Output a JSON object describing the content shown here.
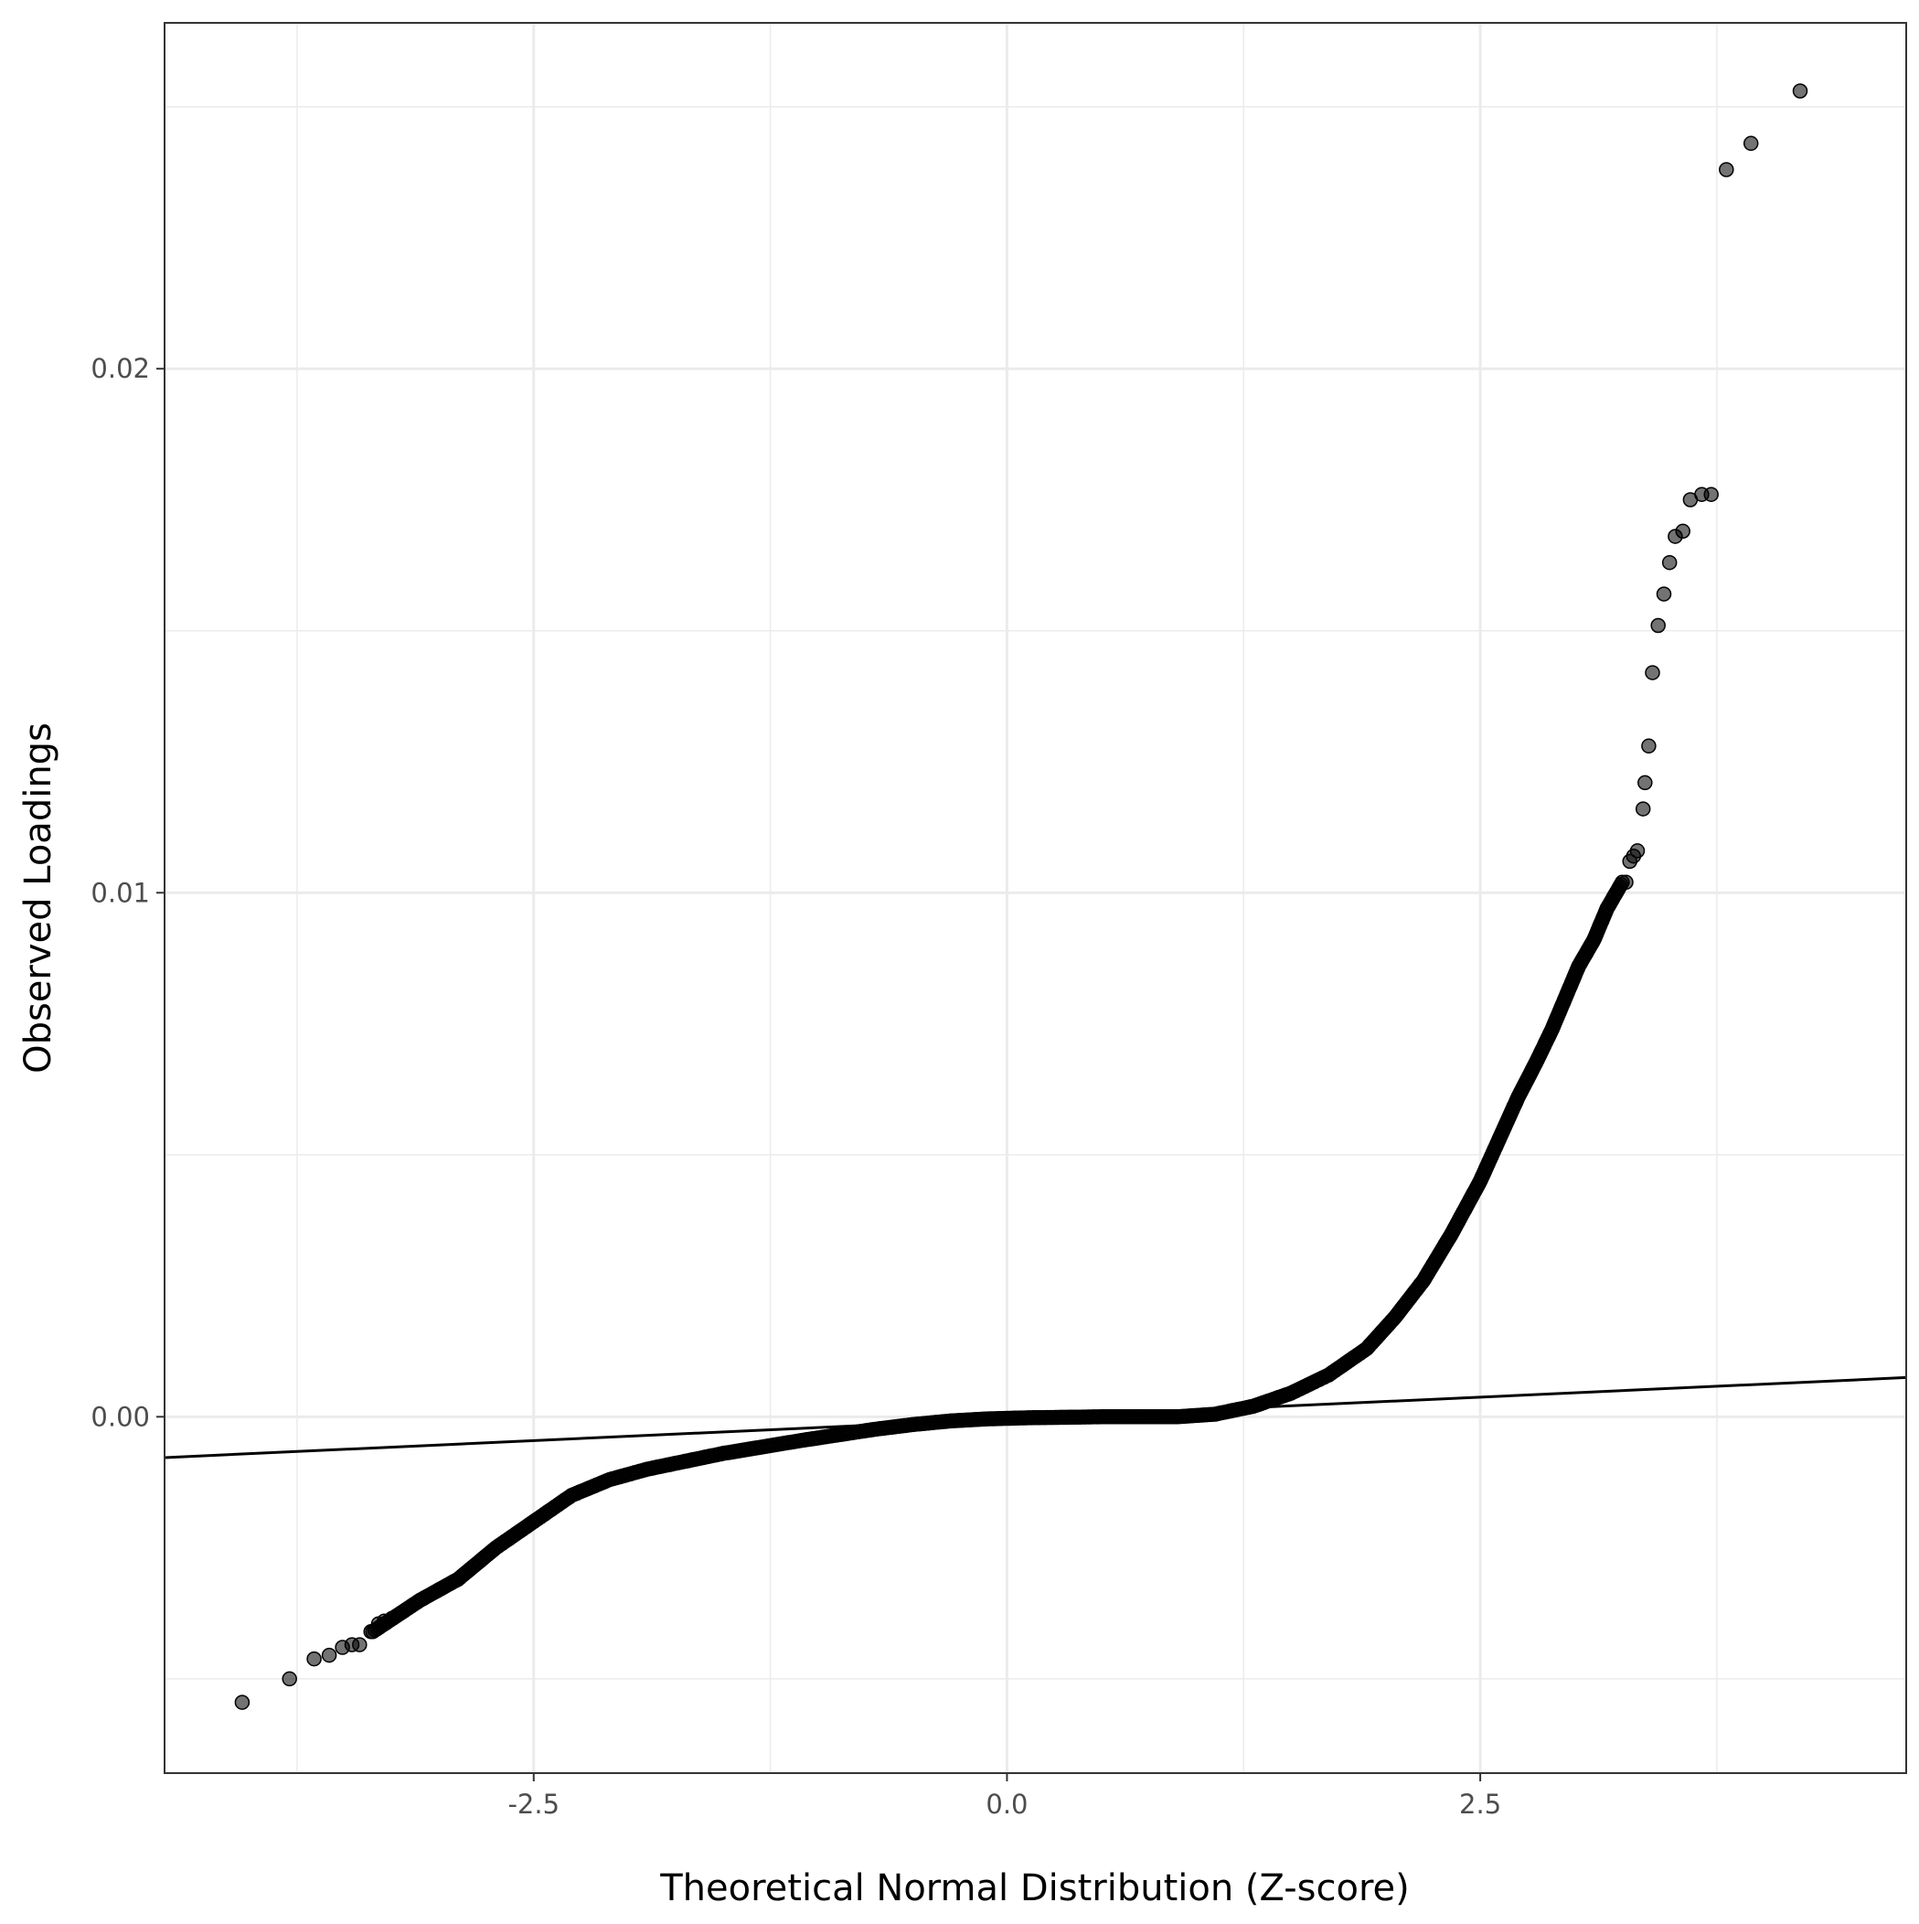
{
  "chart_data": {
    "type": "scatter",
    "title": "",
    "xlabel": "Theoretical Normal Distribution (Z-score)",
    "ylabel": "Observed Loadings",
    "xlim": [
      -4.45,
      4.75
    ],
    "ylim": [
      -0.0068,
      0.0266
    ],
    "x_ticks": [
      {
        "value": -2.5,
        "label": "-2.5"
      },
      {
        "value": 0.0,
        "label": "0.0"
      },
      {
        "value": 2.5,
        "label": "2.5"
      }
    ],
    "y_ticks": [
      {
        "value": 0.0,
        "label": "0.00"
      },
      {
        "value": 0.01,
        "label": "0.01"
      },
      {
        "value": 0.02,
        "label": "0.02"
      }
    ],
    "x_minor": [
      -3.75,
      -1.25,
      1.25,
      3.75
    ],
    "y_minor": [
      -0.005,
      0.005,
      0.015,
      0.025
    ],
    "grid": true,
    "legend": "none",
    "reference_line": {
      "slope": 0.000166,
      "intercept": -4e-05
    },
    "series": [
      {
        "kind": "points",
        "curve": [
          [
            -3.35,
            -0.0041
          ],
          [
            -3.1,
            -0.0035
          ],
          [
            -2.9,
            -0.0031
          ],
          [
            -2.7,
            -0.0025
          ],
          [
            -2.5,
            -0.002
          ],
          [
            -2.3,
            -0.0015
          ],
          [
            -2.1,
            -0.0012
          ],
          [
            -1.9,
            -0.001
          ],
          [
            -1.7,
            -0.00085
          ],
          [
            -1.5,
            -0.0007
          ],
          [
            -1.3,
            -0.00058
          ],
          [
            -1.1,
            -0.00046
          ],
          [
            -0.9,
            -0.00035
          ],
          [
            -0.7,
            -0.00024
          ],
          [
            -0.5,
            -0.00015
          ],
          [
            -0.3,
            -8e-05
          ],
          [
            -0.1,
            -4e-05
          ],
          [
            0.1,
            -2e-05
          ],
          [
            0.3,
            -1e-05
          ],
          [
            0.5,
            0.0
          ],
          [
            0.7,
            0.0
          ],
          [
            0.9,
            0.0
          ],
          [
            1.1,
            5e-05
          ],
          [
            1.3,
            0.0002
          ],
          [
            1.5,
            0.00045
          ],
          [
            1.7,
            0.0008
          ],
          [
            1.9,
            0.0013
          ],
          [
            2.05,
            0.0019
          ],
          [
            2.2,
            0.0026
          ],
          [
            2.35,
            0.0035
          ],
          [
            2.5,
            0.0045
          ],
          [
            2.6,
            0.0053
          ],
          [
            2.7,
            0.0061
          ],
          [
            2.8,
            0.0068
          ],
          [
            2.88,
            0.0074
          ],
          [
            2.95,
            0.008
          ],
          [
            3.02,
            0.0086
          ],
          [
            3.1,
            0.0091
          ],
          [
            3.17,
            0.0097
          ],
          [
            3.25,
            0.0102
          ]
        ],
        "points": [
          [
            -4.04,
            -0.00545
          ],
          [
            -3.79,
            -0.005
          ],
          [
            -3.66,
            -0.00462
          ],
          [
            -3.58,
            -0.00455
          ],
          [
            -3.51,
            -0.0044
          ],
          [
            -3.46,
            -0.00435
          ],
          [
            -3.42,
            -0.00435
          ],
          [
            -3.36,
            -0.0041
          ],
          [
            -3.32,
            -0.00395
          ],
          [
            -3.29,
            -0.0039
          ],
          [
            -3.25,
            -0.00385
          ],
          [
            3.27,
            0.0102
          ],
          [
            3.29,
            0.0106
          ],
          [
            3.31,
            0.0107
          ],
          [
            3.33,
            0.0108
          ],
          [
            3.36,
            0.0116
          ],
          [
            3.37,
            0.0121
          ],
          [
            3.39,
            0.0128
          ],
          [
            3.41,
            0.0142
          ],
          [
            3.44,
            0.0151
          ],
          [
            3.47,
            0.0157
          ],
          [
            3.5,
            0.0163
          ],
          [
            3.53,
            0.0168
          ],
          [
            3.57,
            0.0169
          ],
          [
            3.61,
            0.0175
          ],
          [
            3.67,
            0.0176
          ],
          [
            3.72,
            0.0176
          ],
          [
            3.8,
            0.0238
          ],
          [
            3.93,
            0.0243
          ],
          [
            4.19,
            0.0253
          ]
        ]
      }
    ]
  }
}
